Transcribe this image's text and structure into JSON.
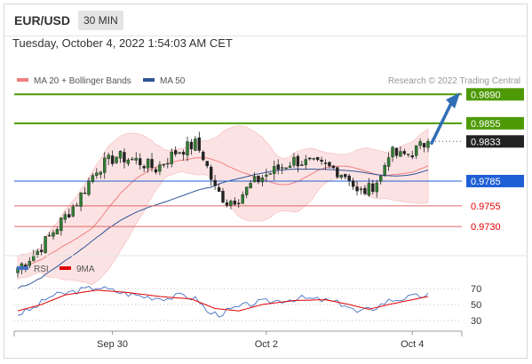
{
  "header": {
    "symbol": "EUR/USD",
    "timeframe": "30 MIN",
    "timestamp": "Tuesday, October 4, 2022 1:54:03 AM CET"
  },
  "legend": {
    "ma20_label": "MA 20 + Bollinger Bands",
    "ma50_label": "MA 50",
    "ma20_color": "#f08080",
    "ma50_color": "#2f5597",
    "source": "Research © 2022 Trading Central"
  },
  "rsi_legend": {
    "rsi_label": "RSI",
    "ma9_label": "9MA",
    "rsi_color": "#4472c4",
    "ma9_color": "#e00000"
  },
  "chart_data": {
    "type": "candlestick",
    "price_range": [
      0.97,
      0.99
    ],
    "levels": [
      {
        "value": 0.989,
        "label": "0.9890",
        "kind": "resistance",
        "color": "#4e9a06"
      },
      {
        "value": 0.9855,
        "label": "0.9855",
        "kind": "resistance",
        "color": "#4e9a06"
      },
      {
        "value": 0.9833,
        "label": "0.9833",
        "kind": "last",
        "color": "#222222"
      },
      {
        "value": 0.9785,
        "label": "0.9785",
        "kind": "pivot",
        "color": "#1f5fd6"
      },
      {
        "value": 0.9755,
        "label": "0.9755",
        "kind": "support",
        "color": "#e06666"
      },
      {
        "value": 0.973,
        "label": "0.9730",
        "kind": "support",
        "color": "#e06666"
      }
    ],
    "x_ticks": [
      {
        "label": "Sep 30",
        "index": 24
      },
      {
        "label": "Oct 2",
        "index": 63
      },
      {
        "label": "Oct 4",
        "index": 100
      }
    ],
    "candle_count": 105,
    "close_anchors": [
      [
        0,
        0.968
      ],
      [
        5,
        0.97
      ],
      [
        10,
        0.973
      ],
      [
        15,
        0.976
      ],
      [
        20,
        0.98
      ],
      [
        25,
        0.9815
      ],
      [
        30,
        0.981
      ],
      [
        35,
        0.98
      ],
      [
        40,
        0.982
      ],
      [
        45,
        0.983
      ],
      [
        47,
        0.9815
      ],
      [
        50,
        0.9775
      ],
      [
        53,
        0.976
      ],
      [
        56,
        0.9765
      ],
      [
        59,
        0.978
      ],
      [
        62,
        0.979
      ],
      [
        66,
        0.98
      ],
      [
        70,
        0.981
      ],
      [
        75,
        0.9805
      ],
      [
        80,
        0.98
      ],
      [
        84,
        0.979
      ],
      [
        86,
        0.977
      ],
      [
        89,
        0.9775
      ],
      [
        92,
        0.979
      ],
      [
        94,
        0.982
      ],
      [
        97,
        0.9815
      ],
      [
        100,
        0.982
      ],
      [
        104,
        0.9833
      ]
    ],
    "forecast_arrow": {
      "from": 0.9833,
      "to": 0.989
    },
    "rsi": {
      "range": [
        20,
        80
      ],
      "ticks": [
        30,
        50,
        70
      ],
      "anchors": [
        [
          0,
          38
        ],
        [
          4,
          45
        ],
        [
          8,
          60
        ],
        [
          14,
          66
        ],
        [
          20,
          72
        ],
        [
          26,
          65
        ],
        [
          32,
          60
        ],
        [
          38,
          58
        ],
        [
          42,
          62
        ],
        [
          46,
          55
        ],
        [
          48,
          40
        ],
        [
          51,
          38
        ],
        [
          55,
          45
        ],
        [
          60,
          52
        ],
        [
          66,
          55
        ],
        [
          72,
          58
        ],
        [
          78,
          55
        ],
        [
          83,
          50
        ],
        [
          86,
          40
        ],
        [
          90,
          45
        ],
        [
          94,
          55
        ],
        [
          98,
          58
        ],
        [
          104,
          62
        ]
      ],
      "ma9_anchors": [
        [
          0,
          42
        ],
        [
          6,
          50
        ],
        [
          12,
          62
        ],
        [
          20,
          68
        ],
        [
          28,
          65
        ],
        [
          36,
          60
        ],
        [
          44,
          57
        ],
        [
          50,
          45
        ],
        [
          56,
          42
        ],
        [
          62,
          50
        ],
        [
          70,
          55
        ],
        [
          78,
          56
        ],
        [
          84,
          50
        ],
        [
          89,
          44
        ],
        [
          94,
          50
        ],
        [
          100,
          56
        ],
        [
          104,
          60
        ]
      ]
    }
  }
}
